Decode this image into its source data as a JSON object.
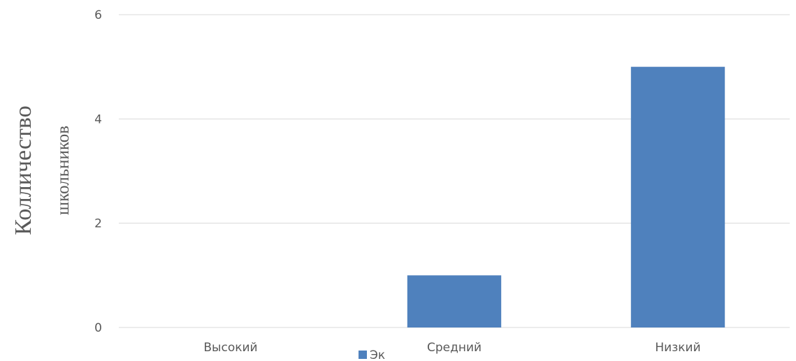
{
  "chart_data": {
    "type": "bar",
    "title": "",
    "xlabel": "",
    "ylabel": [
      "Колличество",
      "школьников"
    ],
    "categories": [
      "Высокий",
      "Средний",
      "Низкий"
    ],
    "series": [
      {
        "name": "Эк",
        "values": [
          0,
          1,
          5
        ],
        "color": "#4f81bd"
      }
    ],
    "ylim": [
      0,
      6
    ],
    "yticks": [
      0,
      2,
      4,
      6
    ],
    "grid": true,
    "gridColor": "#d9d9d9",
    "legend": "bottom-center"
  }
}
